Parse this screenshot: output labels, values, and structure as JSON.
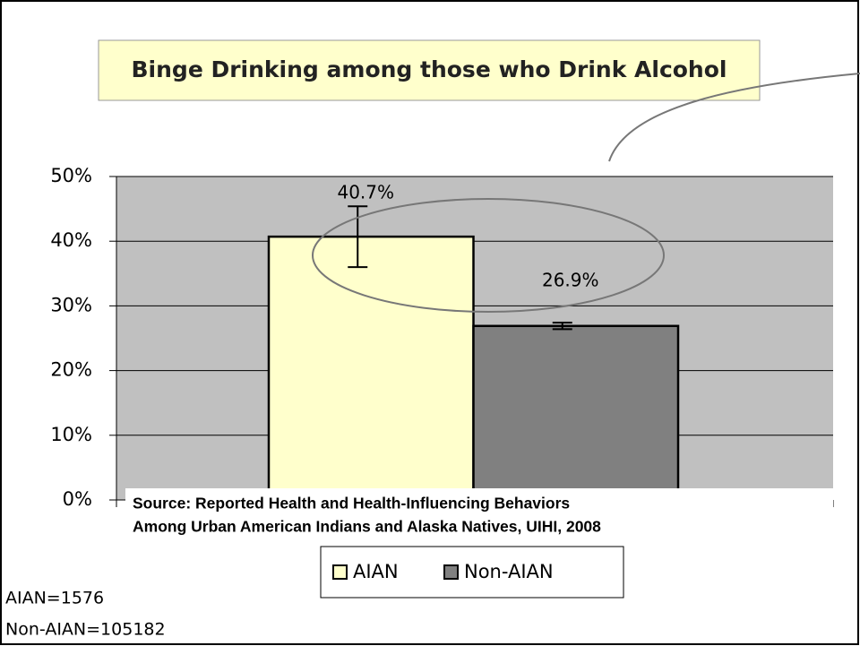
{
  "chart_data": {
    "type": "bar",
    "title": "Binge Drinking among those who Drink Alcohol",
    "categories": [
      "AIAN",
      "Non-AIAN"
    ],
    "series": [
      {
        "name": "AIAN",
        "color": "#ffffcc",
        "values": [
          40.7,
          null
        ],
        "value_labels": [
          "40.7%",
          null
        ],
        "errors": [
          4.7,
          null
        ]
      },
      {
        "name": "Non-AIAN",
        "color": "#808080",
        "values": [
          null,
          26.9
        ],
        "value_labels": [
          null,
          "26.9%"
        ],
        "errors": [
          null,
          0.5
        ]
      }
    ],
    "ylim": [
      0,
      50
    ],
    "yticks": [
      {
        "value": 0,
        "label": "0%"
      },
      {
        "value": 10,
        "label": "10%"
      },
      {
        "value": 20,
        "label": "20%"
      },
      {
        "value": 30,
        "label": "30%"
      },
      {
        "value": 40,
        "label": "40%"
      },
      {
        "value": 50,
        "label": "50%"
      }
    ],
    "grid": true,
    "source": [
      "Source: Reported  Health and Health-Influencing Behaviors",
      "Among Urban American Indians and Alaska Natives, UIHI, 2008"
    ],
    "notes": [
      "AIAN=1576",
      "Non-AIAN=105182"
    ]
  }
}
